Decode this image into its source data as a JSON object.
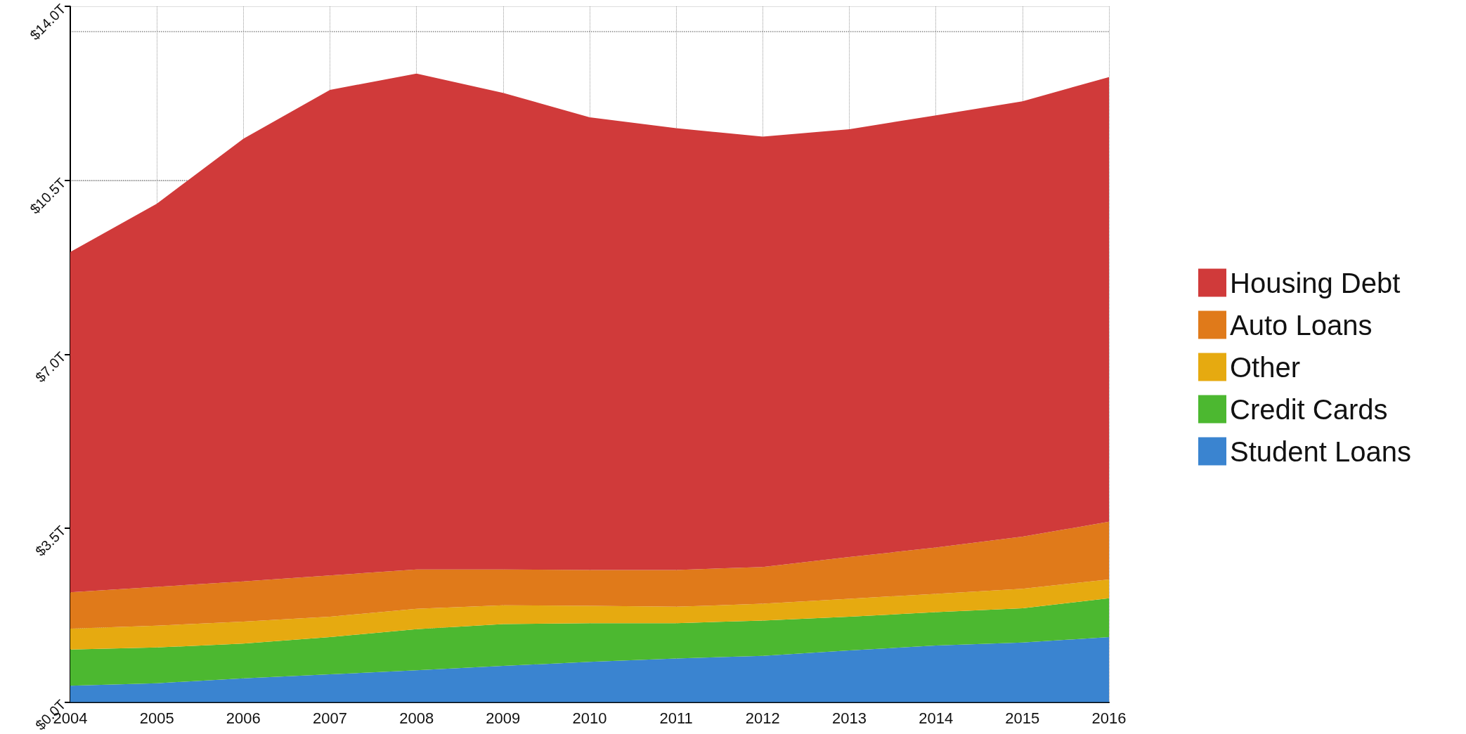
{
  "chart_data": {
    "type": "area",
    "stacked": true,
    "categories": [
      "2004",
      "2005",
      "2006",
      "2007",
      "2008",
      "2009",
      "2010",
      "2011",
      "2012",
      "2013",
      "2014",
      "2015",
      "2016"
    ],
    "series": [
      {
        "name": "Student Loans",
        "color": "#3a84d0",
        "values": [
          0.33,
          0.38,
          0.48,
          0.56,
          0.64,
          0.73,
          0.81,
          0.88,
          0.93,
          1.04,
          1.14,
          1.2,
          1.31
        ]
      },
      {
        "name": "Credit Cards",
        "color": "#4cb830",
        "values": [
          0.73,
          0.72,
          0.7,
          0.75,
          0.83,
          0.84,
          0.78,
          0.71,
          0.71,
          0.68,
          0.67,
          0.69,
          0.78
        ]
      },
      {
        "name": "Other",
        "color": "#e6aa10",
        "values": [
          0.42,
          0.44,
          0.44,
          0.41,
          0.41,
          0.38,
          0.35,
          0.33,
          0.34,
          0.36,
          0.37,
          0.39,
          0.38
        ]
      },
      {
        "name": "Auto Loans",
        "color": "#e07a1a",
        "values": [
          0.73,
          0.78,
          0.81,
          0.83,
          0.79,
          0.72,
          0.72,
          0.74,
          0.74,
          0.84,
          0.93,
          1.05,
          1.16
        ]
      },
      {
        "name": "Housing Debt",
        "color": "#d03a3a",
        "values": [
          6.85,
          7.71,
          8.91,
          9.77,
          9.98,
          9.59,
          9.11,
          8.89,
          8.66,
          8.61,
          8.7,
          8.76,
          8.95
        ]
      }
    ],
    "ylim": [
      0,
      14
    ],
    "yticks": [
      {
        "value": 0,
        "label": "$0.0T"
      },
      {
        "value": 3.5,
        "label": "$3.5T"
      },
      {
        "value": 7,
        "label": "$7.0T"
      },
      {
        "value": 10.5,
        "label": "$10.5T"
      },
      {
        "value": 14,
        "label": "$14.0T"
      }
    ],
    "grid": true,
    "legend": "right"
  }
}
